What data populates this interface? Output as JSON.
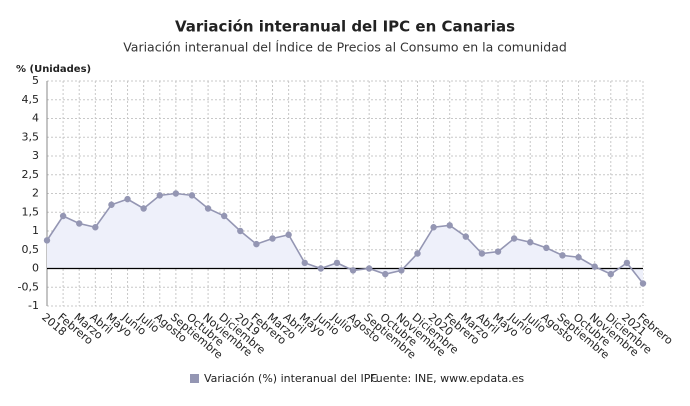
{
  "chart_data": {
    "type": "line",
    "title": "Variación interanual del IPC en Canarias",
    "subtitle": "Variación interanual del Índice de Precios al Consumo en la comunidad",
    "y_label": "% (Unidades)",
    "source": "Fuente: INE, www.epdata.es",
    "categories": [
      "2018",
      "Febrero",
      "Marzo",
      "Abril",
      "Mayo",
      "Junio",
      "Julio",
      "Agosto",
      "Septiembre",
      "Octubre",
      "Noviembre",
      "Diciembre",
      "2019",
      "Febrero",
      "Marzo",
      "Abril",
      "Mayo",
      "Junio",
      "Julio",
      "Agosto",
      "Septiembre",
      "Octubre",
      "Noviembre",
      "Diciembre",
      "2020",
      "Febrero",
      "Marzo",
      "Abril",
      "Mayo",
      "Junio",
      "Julio",
      "Agosto",
      "Septiembre",
      "Octubre",
      "Noviembre",
      "Diciembre",
      "2021",
      "Febrero"
    ],
    "series": [
      {
        "name": "Variación (%) interanual del IPC",
        "color": "#9496b3",
        "values": [
          0.75,
          1.4,
          1.2,
          1.1,
          1.7,
          1.85,
          1.6,
          1.95,
          2.0,
          1.95,
          1.6,
          1.4,
          1.0,
          0.65,
          0.8,
          0.9,
          0.15,
          0.0,
          0.15,
          -0.05,
          0.0,
          -0.15,
          -0.05,
          0.4,
          1.1,
          1.15,
          0.85,
          0.4,
          0.45,
          0.8,
          0.7,
          0.55,
          0.35,
          0.3,
          0.05,
          -0.15,
          0.15,
          -0.4
        ]
      }
    ],
    "ylim": [
      -1,
      5
    ],
    "yticks": [
      -1,
      {
        "value": -0.5,
        "label": "-0,5"
      },
      0,
      {
        "value": 0.5,
        "label": "0,5"
      },
      1,
      {
        "value": 1.5,
        "label": "1,5"
      },
      2,
      {
        "value": 2.5,
        "label": "2,5"
      },
      3,
      {
        "value": 3.5,
        "label": "3,5"
      },
      4,
      {
        "value": 4.5,
        "label": "4,5"
      },
      5
    ],
    "grid": true,
    "area_color": "#eef0fa"
  }
}
